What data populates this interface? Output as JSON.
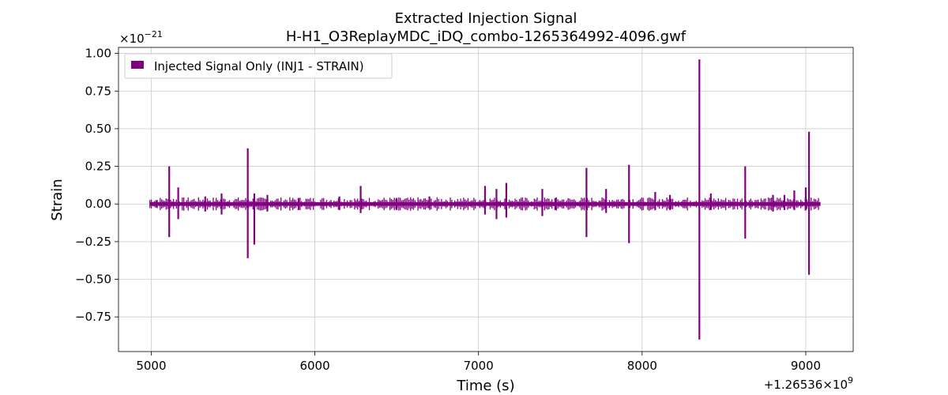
{
  "chart_data": {
    "type": "line",
    "title": "Extracted Injection Signal",
    "subtitle": "H-H1_O3ReplayMDC_iDQ_combo-1265364992-4096.gwf",
    "xlabel": "Time (s)",
    "ylabel": "Strain",
    "y_multiplier": "×10",
    "y_multiplier_exp": "−21",
    "x_offset_base": "+1.26536",
    "x_offset_times": "×10",
    "x_offset_exp": "9",
    "xlim": [
      4800,
      9290
    ],
    "ylim": [
      -0.98,
      1.04
    ],
    "x_ticks": [
      5000,
      6000,
      7000,
      8000,
      9000
    ],
    "x_tick_labels": [
      "5000",
      "6000",
      "7000",
      "8000",
      "9000"
    ],
    "y_ticks": [
      1.0,
      0.75,
      0.5,
      0.25,
      0.0,
      -0.25,
      -0.5,
      -0.75
    ],
    "y_tick_labels": [
      "1.00",
      "0.75",
      "0.50",
      "0.25",
      "0.00",
      "−0.25",
      "−0.50",
      "−0.75"
    ],
    "grid": true,
    "legend_position": "top-left",
    "series": [
      {
        "name": "Injected Signal Only (INJ1 - STRAIN)",
        "color": "#800080",
        "x_range": [
          4992,
          9088
        ],
        "baseline_amplitude": 0.012,
        "spikes": [
          {
            "t": 5030,
            "lo": -0.02,
            "hi": 0.02
          },
          {
            "t": 5110,
            "lo": -0.22,
            "hi": 0.25
          },
          {
            "t": 5165,
            "lo": -0.1,
            "hi": 0.11
          },
          {
            "t": 5330,
            "lo": -0.05,
            "hi": 0.05
          },
          {
            "t": 5430,
            "lo": -0.07,
            "hi": 0.07
          },
          {
            "t": 5590,
            "lo": -0.36,
            "hi": 0.37
          },
          {
            "t": 5630,
            "lo": -0.27,
            "hi": 0.07
          },
          {
            "t": 5710,
            "lo": -0.05,
            "hi": 0.06
          },
          {
            "t": 5900,
            "lo": -0.04,
            "hi": 0.04
          },
          {
            "t": 6150,
            "lo": -0.04,
            "hi": 0.05
          },
          {
            "t": 6280,
            "lo": -0.06,
            "hi": 0.12
          },
          {
            "t": 6500,
            "lo": -0.04,
            "hi": 0.04
          },
          {
            "t": 6700,
            "lo": -0.03,
            "hi": 0.05
          },
          {
            "t": 7040,
            "lo": -0.07,
            "hi": 0.12
          },
          {
            "t": 7110,
            "lo": -0.1,
            "hi": 0.1
          },
          {
            "t": 7170,
            "lo": -0.09,
            "hi": 0.14
          },
          {
            "t": 7390,
            "lo": -0.08,
            "hi": 0.1
          },
          {
            "t": 7470,
            "lo": -0.04,
            "hi": 0.04
          },
          {
            "t": 7660,
            "lo": -0.22,
            "hi": 0.24
          },
          {
            "t": 7780,
            "lo": -0.06,
            "hi": 0.1
          },
          {
            "t": 7920,
            "lo": -0.26,
            "hi": 0.26
          },
          {
            "t": 8080,
            "lo": -0.04,
            "hi": 0.08
          },
          {
            "t": 8170,
            "lo": -0.04,
            "hi": 0.06
          },
          {
            "t": 8350,
            "lo": -0.9,
            "hi": 0.96
          },
          {
            "t": 8420,
            "lo": -0.04,
            "hi": 0.07
          },
          {
            "t": 8630,
            "lo": -0.23,
            "hi": 0.25
          },
          {
            "t": 8800,
            "lo": -0.05,
            "hi": 0.06
          },
          {
            "t": 8870,
            "lo": -0.04,
            "hi": 0.06
          },
          {
            "t": 8930,
            "lo": -0.04,
            "hi": 0.09
          },
          {
            "t": 9000,
            "lo": -0.04,
            "hi": 0.11
          },
          {
            "t": 9020,
            "lo": -0.47,
            "hi": 0.48
          }
        ]
      }
    ]
  }
}
